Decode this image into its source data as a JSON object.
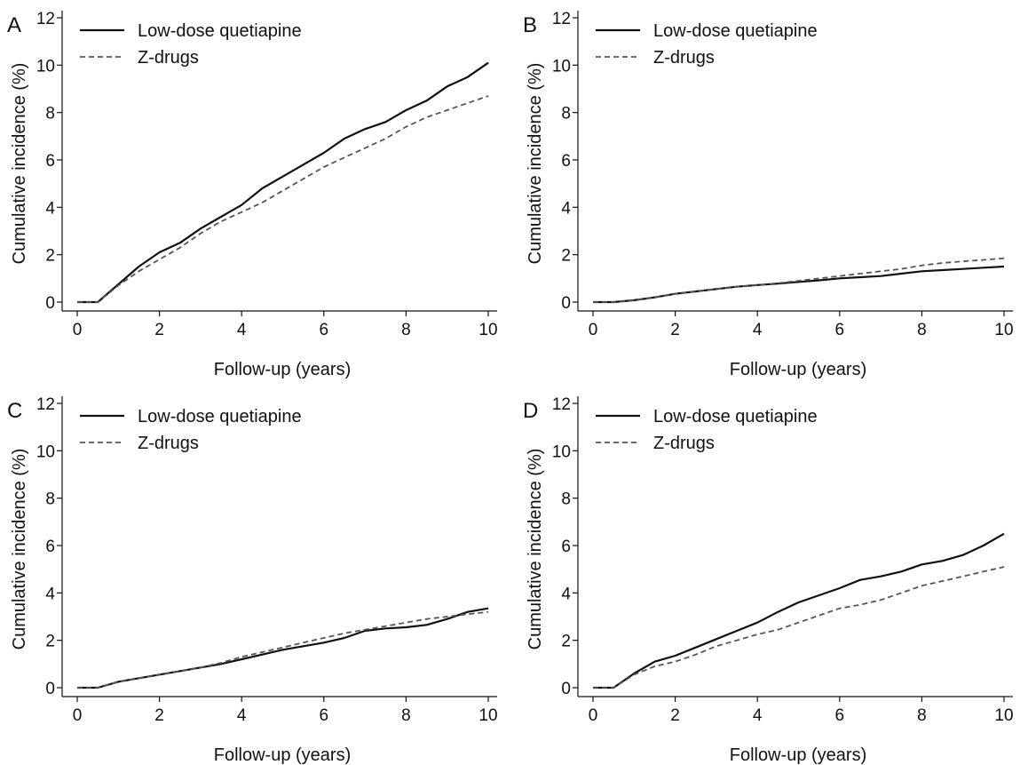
{
  "chart_data": [
    {
      "panel": "A",
      "type": "line",
      "xlabel": "Follow-up (years)",
      "ylabel": "Cumulative incidence (%)",
      "xlim": [
        0,
        10
      ],
      "ylim": [
        0,
        12
      ],
      "xticks": [
        "0",
        "2",
        "4",
        "6",
        "8",
        "10"
      ],
      "yticks": [
        "0",
        "2",
        "4",
        "6",
        "8",
        "10",
        "12"
      ],
      "grid": false,
      "legend": "top-left",
      "series": [
        {
          "name": "Low-dose quetiapine",
          "style": "solid",
          "color": "#111111",
          "x": [
            0,
            0.5,
            1,
            1.5,
            2,
            2.5,
            3,
            3.5,
            4,
            4.5,
            5,
            5.5,
            6,
            6.5,
            7,
            7.5,
            8,
            8.5,
            9,
            9.5,
            10
          ],
          "y": [
            0,
            0,
            0.75,
            1.5,
            2.1,
            2.5,
            3.1,
            3.6,
            4.1,
            4.8,
            5.3,
            5.8,
            6.3,
            6.9,
            7.3,
            7.6,
            8.1,
            8.5,
            9.1,
            9.5,
            10.1
          ]
        },
        {
          "name": "Z-drugs",
          "style": "dashed",
          "color": "#555555",
          "x": [
            0,
            0.5,
            1,
            1.5,
            2,
            2.5,
            3,
            3.5,
            4,
            4.5,
            5,
            5.5,
            6,
            6.5,
            7,
            7.5,
            8,
            8.5,
            9,
            9.5,
            10
          ],
          "y": [
            0,
            0,
            0.7,
            1.3,
            1.8,
            2.3,
            2.9,
            3.4,
            3.8,
            4.2,
            4.7,
            5.2,
            5.7,
            6.1,
            6.5,
            6.9,
            7.4,
            7.8,
            8.1,
            8.4,
            8.7
          ]
        }
      ]
    },
    {
      "panel": "B",
      "type": "line",
      "xlabel": "Follow-up (years)",
      "ylabel": "Cumulative incidence (%)",
      "xlim": [
        0,
        10
      ],
      "ylim": [
        0,
        12
      ],
      "xticks": [
        "0",
        "2",
        "4",
        "6",
        "8",
        "10"
      ],
      "yticks": [
        "0",
        "2",
        "4",
        "6",
        "8",
        "10",
        "12"
      ],
      "grid": false,
      "legend": "top-left",
      "series": [
        {
          "name": "Low-dose quetiapine",
          "style": "solid",
          "color": "#111111",
          "x": [
            0,
            0.5,
            1,
            1.5,
            2,
            2.5,
            3,
            3.5,
            4,
            4.5,
            5,
            5.5,
            6,
            6.5,
            7,
            7.5,
            8,
            8.5,
            9,
            9.5,
            10
          ],
          "y": [
            0,
            0,
            0.08,
            0.2,
            0.35,
            0.45,
            0.55,
            0.65,
            0.72,
            0.78,
            0.85,
            0.92,
            1.0,
            1.05,
            1.1,
            1.2,
            1.3,
            1.35,
            1.4,
            1.45,
            1.5
          ]
        },
        {
          "name": "Z-drugs",
          "style": "dashed",
          "color": "#555555",
          "x": [
            0,
            0.5,
            1,
            1.5,
            2,
            2.5,
            3,
            3.5,
            4,
            4.5,
            5,
            5.5,
            6,
            6.5,
            7,
            7.5,
            8,
            8.5,
            9,
            9.5,
            10
          ],
          "y": [
            0,
            0,
            0.08,
            0.2,
            0.35,
            0.45,
            0.55,
            0.65,
            0.72,
            0.8,
            0.9,
            1.0,
            1.1,
            1.2,
            1.3,
            1.4,
            1.55,
            1.65,
            1.72,
            1.78,
            1.85
          ]
        }
      ]
    },
    {
      "panel": "C",
      "type": "line",
      "xlabel": "Follow-up (years)",
      "ylabel": "Cumulative incidence (%)",
      "xlim": [
        0,
        10
      ],
      "ylim": [
        0,
        12
      ],
      "xticks": [
        "0",
        "2",
        "4",
        "6",
        "8",
        "10"
      ],
      "yticks": [
        "0",
        "2",
        "4",
        "6",
        "8",
        "10",
        "12"
      ],
      "grid": false,
      "legend": "top-left",
      "series": [
        {
          "name": "Low-dose quetiapine",
          "style": "solid",
          "color": "#111111",
          "x": [
            0,
            0.5,
            1,
            1.5,
            2,
            2.5,
            3,
            3.5,
            4,
            4.5,
            5,
            5.5,
            6,
            6.5,
            7,
            7.5,
            8,
            8.5,
            9,
            9.5,
            10
          ],
          "y": [
            0,
            0,
            0.25,
            0.4,
            0.55,
            0.7,
            0.85,
            1.0,
            1.2,
            1.4,
            1.6,
            1.75,
            1.9,
            2.1,
            2.4,
            2.5,
            2.55,
            2.65,
            2.9,
            3.2,
            3.35
          ]
        },
        {
          "name": "Z-drugs",
          "style": "dashed",
          "color": "#555555",
          "x": [
            0,
            0.5,
            1,
            1.5,
            2,
            2.5,
            3,
            3.5,
            4,
            4.5,
            5,
            5.5,
            6,
            6.5,
            7,
            7.5,
            8,
            8.5,
            9,
            9.5,
            10
          ],
          "y": [
            0,
            0,
            0.25,
            0.4,
            0.55,
            0.7,
            0.85,
            1.05,
            1.3,
            1.5,
            1.7,
            1.9,
            2.1,
            2.3,
            2.45,
            2.6,
            2.75,
            2.9,
            3.0,
            3.1,
            3.2
          ]
        }
      ]
    },
    {
      "panel": "D",
      "type": "line",
      "xlabel": "Follow-up (years)",
      "ylabel": "Cumulative incidence (%)",
      "xlim": [
        0,
        10
      ],
      "ylim": [
        0,
        12
      ],
      "xticks": [
        "0",
        "2",
        "4",
        "6",
        "8",
        "10"
      ],
      "yticks": [
        "0",
        "2",
        "4",
        "6",
        "8",
        "10",
        "12"
      ],
      "grid": false,
      "legend": "top-left",
      "series": [
        {
          "name": "Low-dose quetiapine",
          "style": "solid",
          "color": "#111111",
          "x": [
            0,
            0.5,
            1,
            1.5,
            2,
            2.5,
            3,
            3.5,
            4,
            4.5,
            5,
            5.5,
            6,
            6.5,
            7,
            7.5,
            8,
            8.5,
            9,
            9.5,
            10
          ],
          "y": [
            0,
            0,
            0.6,
            1.1,
            1.35,
            1.7,
            2.05,
            2.4,
            2.75,
            3.2,
            3.6,
            3.9,
            4.2,
            4.55,
            4.7,
            4.9,
            5.2,
            5.35,
            5.6,
            6.0,
            6.5
          ]
        },
        {
          "name": "Z-drugs",
          "style": "dashed",
          "color": "#555555",
          "x": [
            0,
            0.5,
            1,
            1.5,
            2,
            2.5,
            3,
            3.5,
            4,
            4.5,
            5,
            5.5,
            6,
            6.5,
            7,
            7.5,
            8,
            8.5,
            9,
            9.5,
            10
          ],
          "y": [
            0,
            0,
            0.55,
            0.9,
            1.1,
            1.4,
            1.75,
            2.0,
            2.25,
            2.45,
            2.75,
            3.05,
            3.35,
            3.5,
            3.7,
            4.0,
            4.3,
            4.5,
            4.7,
            4.9,
            5.1
          ]
        }
      ]
    }
  ]
}
